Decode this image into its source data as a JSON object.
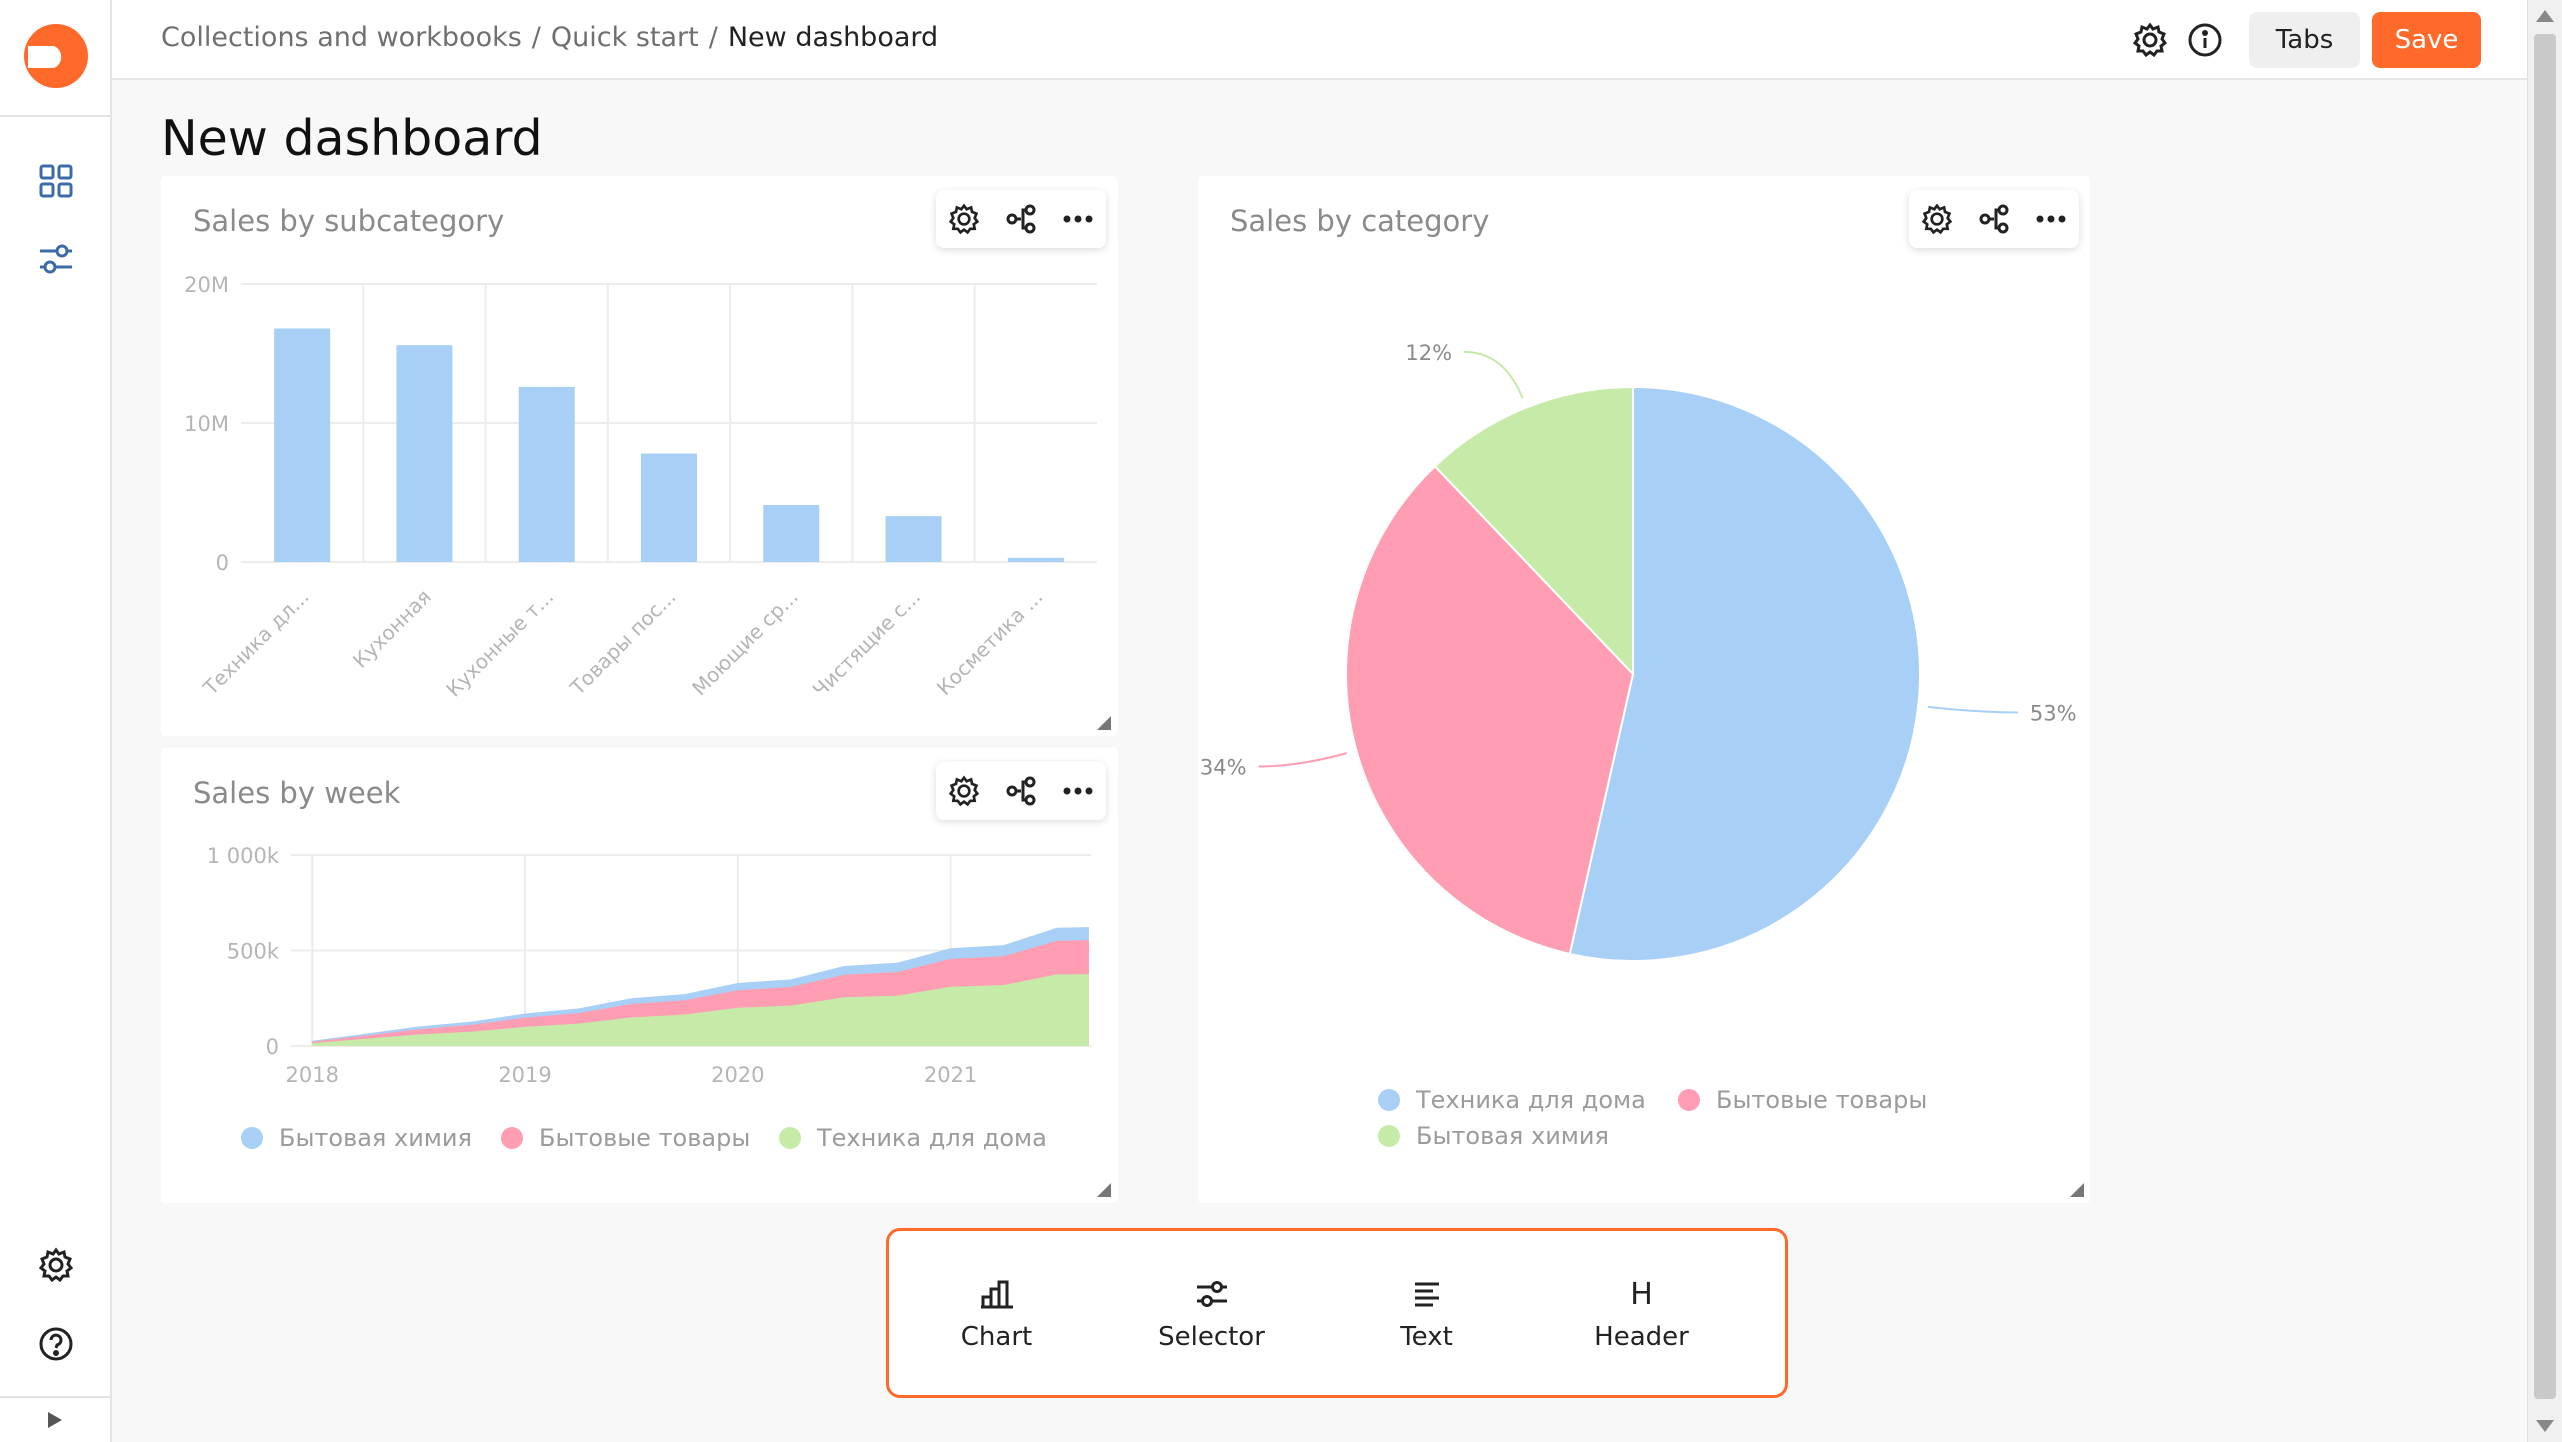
{
  "header": {
    "breadcrumb": [
      "Collections and workbooks",
      "Quick start",
      "New dashboard"
    ],
    "tabs_label": "Tabs",
    "save_label": "Save",
    "settings_icon": "gear-icon",
    "info_icon": "info-icon"
  },
  "page": {
    "title": "New dashboard"
  },
  "sidebar": {
    "items": [
      {
        "icon": "grid-icon"
      },
      {
        "icon": "sliders-icon"
      },
      {
        "icon": "gear-icon"
      },
      {
        "icon": "help-icon"
      }
    ]
  },
  "colors": {
    "accent": "#ff6a2b",
    "blue": "#a8cff5",
    "pink": "#ff9eb3",
    "green": "#c6eaa8"
  },
  "widgets": {
    "subcategory": {
      "title": "Sales by subcategory"
    },
    "week": {
      "title": "Sales by week"
    },
    "category": {
      "title": "Sales by category"
    }
  },
  "toolbox": {
    "items": [
      {
        "label": "Chart",
        "icon": "bar-chart-icon"
      },
      {
        "label": "Selector",
        "icon": "sliders-icon"
      },
      {
        "label": "Text",
        "icon": "text-lines-icon"
      },
      {
        "label": "Header",
        "icon": "header-icon",
        "glyph": "H"
      }
    ]
  },
  "chart_data": [
    {
      "type": "bar",
      "title": "Sales by subcategory",
      "categories": [
        "Техника дл...",
        "Кухонная",
        "Кухонные т...",
        "Товары пос...",
        "Моющие ср...",
        "Чистящие с...",
        "Косметика ..."
      ],
      "values": [
        16.8,
        15.6,
        12.6,
        7.8,
        4.1,
        3.3,
        0.3
      ],
      "unit": "M",
      "yticks": [
        "20M",
        "10M",
        "0"
      ],
      "ylim": [
        0,
        20
      ],
      "color": "#a8cff5"
    },
    {
      "type": "area",
      "title": "Sales by week",
      "stacked": true,
      "xticks": [
        "2018",
        "2019",
        "2020",
        "2021"
      ],
      "yticks": [
        "1 000k",
        "500k",
        "0"
      ],
      "ylim": [
        0,
        1000
      ],
      "x": [
        2018.0,
        2018.25,
        2018.5,
        2018.75,
        2019.0,
        2019.25,
        2019.5,
        2019.75,
        2020.0,
        2020.25,
        2020.5,
        2020.75,
        2021.0,
        2021.25,
        2021.5,
        2021.65
      ],
      "series": [
        {
          "name": "Бытовая химия",
          "color": "#a8cff5",
          "values": [
            5,
            10,
            14,
            18,
            22,
            26,
            30,
            34,
            38,
            42,
            46,
            52,
            56,
            62,
            68,
            72
          ]
        },
        {
          "name": "Бытовые товары",
          "color": "#ff9eb3",
          "values": [
            8,
            18,
            28,
            38,
            48,
            58,
            70,
            80,
            92,
            104,
            118,
            132,
            146,
            160,
            176,
            190
          ]
        },
        {
          "name": "Техника для дома",
          "color": "#c6eaa8",
          "values": [
            15,
            40,
            60,
            80,
            100,
            125,
            150,
            175,
            200,
            225,
            255,
            280,
            310,
            340,
            375,
            400
          ]
        }
      ]
    },
    {
      "type": "pie",
      "title": "Sales by category",
      "slices": [
        {
          "label": "Техника для дома",
          "value": 53,
          "display": "53%",
          "color": "#a8cff5"
        },
        {
          "label": "Бытовые товары",
          "value": 34,
          "display": "34%",
          "color": "#ff9eb3"
        },
        {
          "label": "Бытовая химия",
          "value": 12,
          "display": "12%",
          "color": "#c6eaa8"
        }
      ],
      "legend": "bottom"
    }
  ]
}
